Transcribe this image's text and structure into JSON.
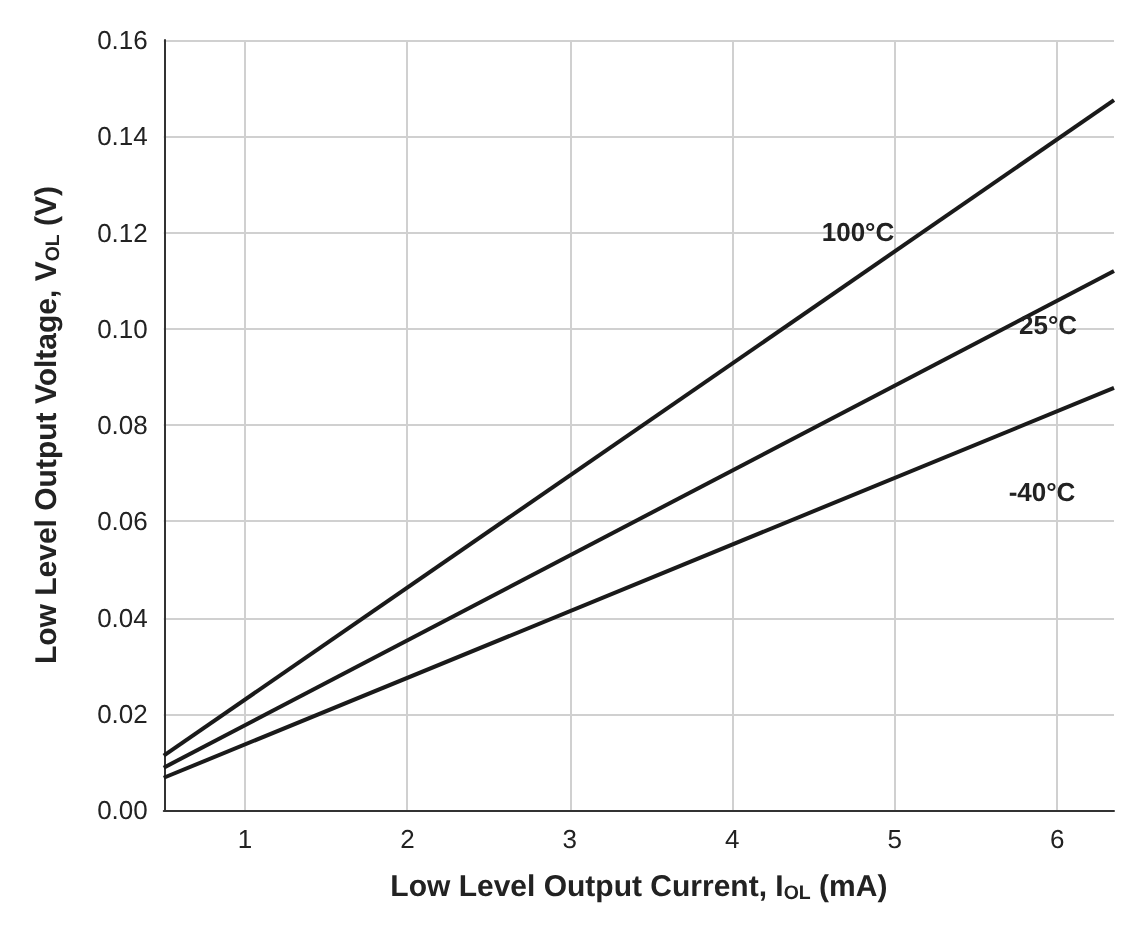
{
  "chart_data": {
    "type": "line",
    "xlabel": "Low Level Output Current, I$_{OL}$ (mA)",
    "ylabel": "Low Level Output Voltage, V$_{OL}$ (V)",
    "xlim": [
      0.5,
      6.35
    ],
    "xticks": [
      1,
      2,
      3,
      4,
      5,
      6
    ],
    "ylim": [
      0,
      0.16
    ],
    "yticks": [
      {
        "value": 0,
        "label": "0.00"
      },
      {
        "value": 0.02,
        "label": "0.02"
      },
      {
        "value": 0.04,
        "label": "0.04"
      },
      {
        "value": 0.06,
        "label": "0.06"
      },
      {
        "value": 0.08,
        "label": "0.08"
      },
      {
        "value": 0.1,
        "label": "0.10"
      },
      {
        "value": 0.12,
        "label": "0.12"
      },
      {
        "value": 0.14,
        "label": "0.14"
      },
      {
        "value": 0.16,
        "label": "0.16"
      }
    ],
    "grid": true,
    "legend": false,
    "marker": "none",
    "line_style": "solid",
    "x": [
      0.5,
      6.35
    ],
    "series": [
      {
        "name": "100°C",
        "color": "#1a1a1a",
        "values": [
          0.0113,
          0.1475
        ]
      },
      {
        "name": "25°C",
        "color": "#1a1a1a",
        "values": [
          0.0088,
          0.112
        ]
      },
      {
        "name": "-40°C",
        "color": "#1a1a1a",
        "values": [
          0.0067,
          0.0877
        ]
      }
    ]
  }
}
